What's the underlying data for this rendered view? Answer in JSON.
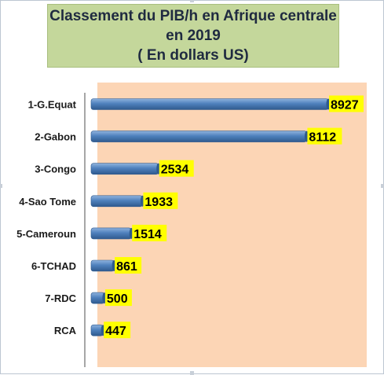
{
  "chart_data": {
    "type": "bar",
    "orientation": "horizontal",
    "title_lines": [
      "Classement du PIB/h en Afrique centrale",
      "en 2019",
      "( En dollars US)"
    ],
    "categories": [
      "1-G.Equat",
      "2-Gabon",
      "3-Congo",
      "4-Sao Tome",
      "5-Cameroun",
      "6-TCHAD",
      "7-RDC",
      "RCA"
    ],
    "values": [
      8927,
      8112,
      2534,
      1933,
      1514,
      861,
      500,
      447
    ],
    "xlim": [
      0,
      9300
    ],
    "grid": false,
    "legend": "none",
    "colors": {
      "bar": "#4f81bd",
      "bar_dark": "#2f5a8e",
      "bar_light": "#8fb3de",
      "plot_area": "#fcd5b5",
      "title_bg": "#c4d79b",
      "value_label_bg": "#ffff00",
      "axis": "#888888"
    }
  }
}
